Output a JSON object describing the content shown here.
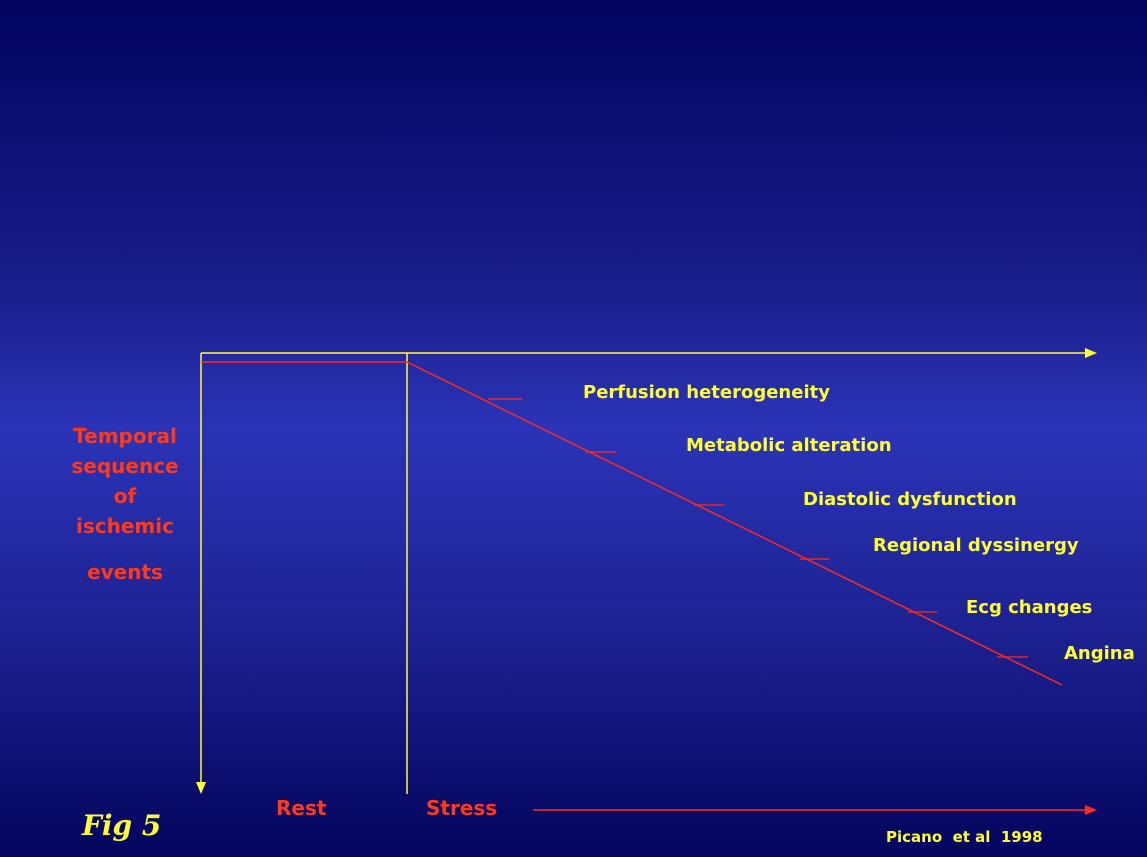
{
  "diagram": {
    "side_title_lines": [
      "Temporal",
      "sequence",
      "of",
      "ischemic",
      "events"
    ],
    "events": [
      "Perfusion heterogeneity",
      "Metabolic alteration",
      "Diastolic dysfunction",
      "Regional dyssinergy",
      "Ecg changes",
      "Angina"
    ],
    "phase_rest": "Rest",
    "phase_stress": "Stress",
    "figure_label": "Fig 5",
    "citation": "Picano  et al  1998",
    "colors": {
      "axis": "#ffff33",
      "sequence_line": "#ff2a1a",
      "label_yellow": "#ffff33",
      "label_red": "#ff3a1a"
    }
  }
}
